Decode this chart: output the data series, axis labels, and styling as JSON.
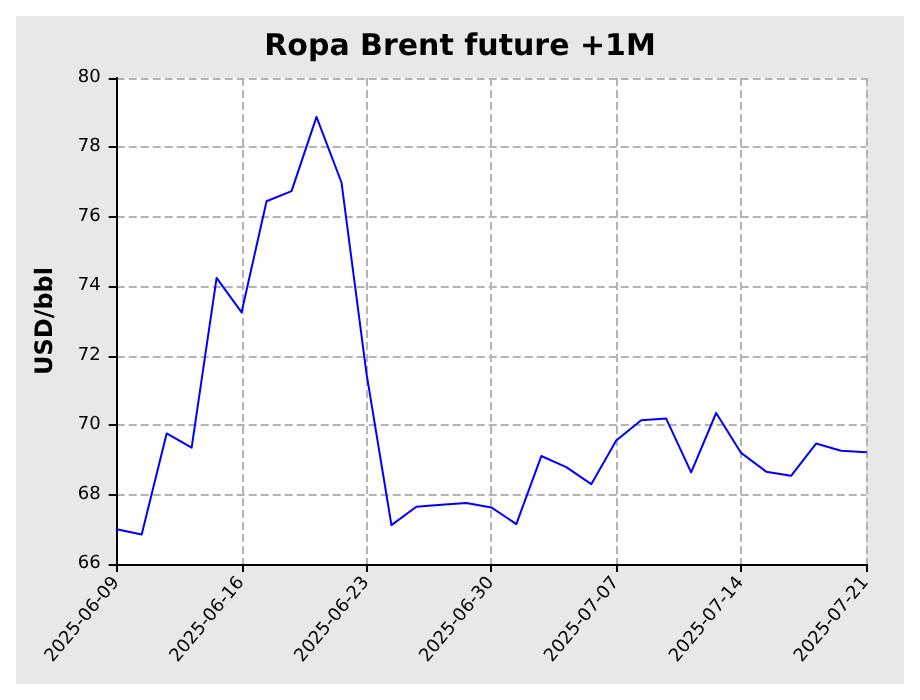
{
  "chart_data": {
    "type": "line",
    "title": "Ropa Brent future +1M",
    "ylabel": "USD/bbl",
    "categories": [
      "2025-06-09",
      null,
      null,
      null,
      null,
      "2025-06-16",
      null,
      null,
      null,
      null,
      "2025-06-23",
      null,
      null,
      null,
      null,
      "2025-06-30",
      null,
      null,
      null,
      null,
      "2025-07-07",
      null,
      null,
      null,
      null,
      "2025-07-14",
      null,
      null,
      null,
      null,
      "2025-07-21"
    ],
    "series": [
      {
        "color": "#0000ff",
        "values": [
          67.0,
          66.85,
          69.76,
          69.35,
          74.24,
          73.25,
          76.45,
          76.74,
          78.88,
          76.99,
          71.49,
          67.12,
          67.65,
          67.71,
          67.76,
          67.63,
          67.15,
          69.11,
          68.79,
          68.3,
          69.56,
          70.14,
          70.19,
          68.64,
          70.35,
          69.2,
          68.66,
          68.54,
          69.47,
          69.26,
          69.22
        ]
      }
    ],
    "ylim": [
      66,
      80
    ],
    "yticks": [
      66,
      68,
      70,
      72,
      74,
      76,
      78,
      80
    ],
    "grid": true,
    "marker": "none",
    "line_style": "solid"
  }
}
